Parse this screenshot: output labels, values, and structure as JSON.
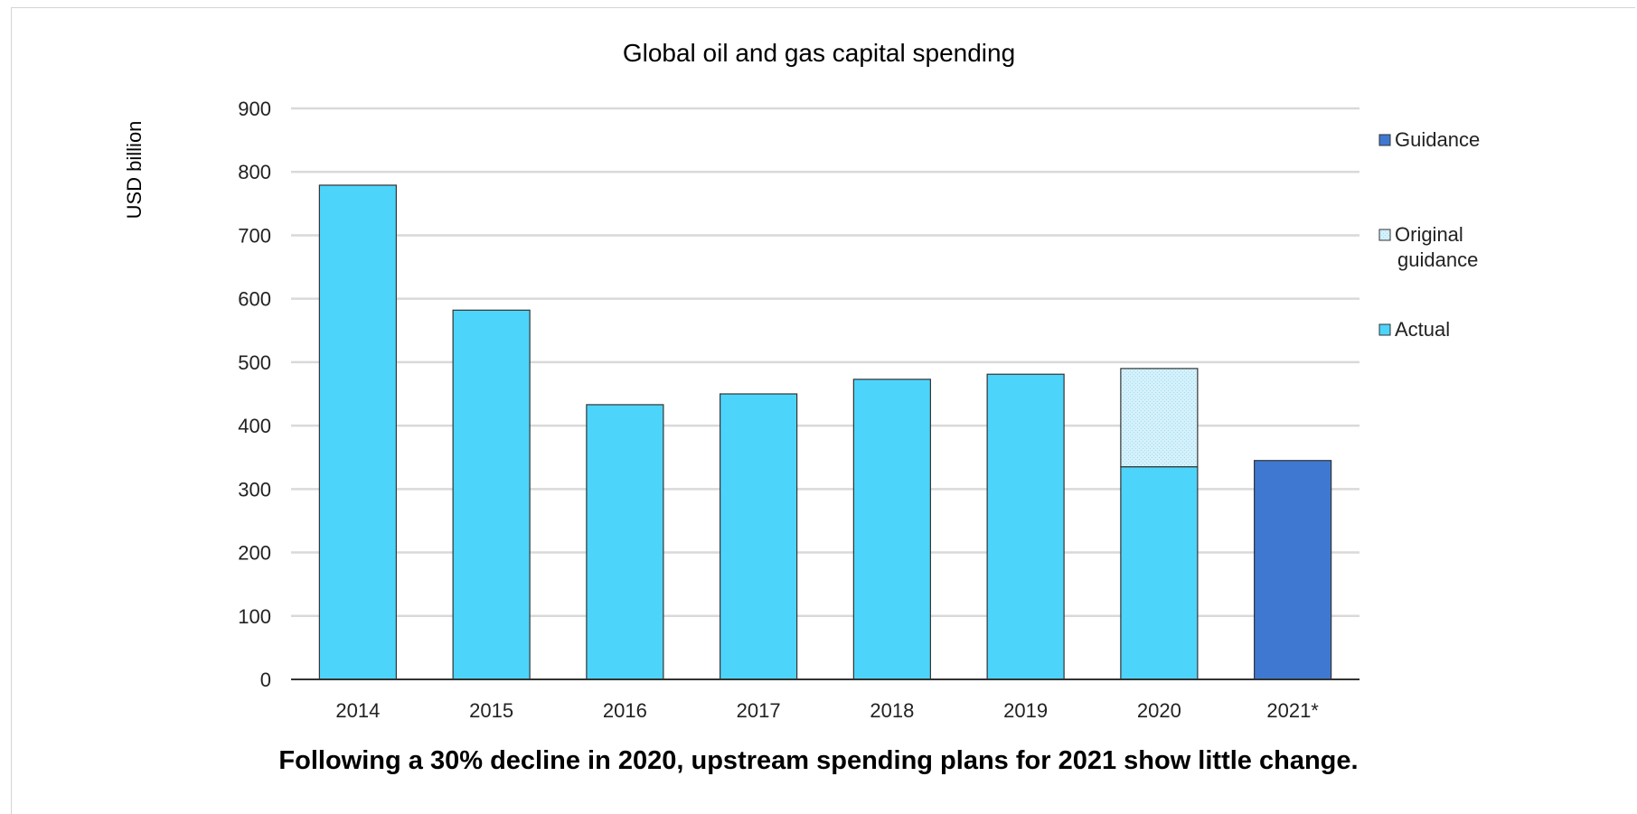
{
  "chart_data": {
    "type": "bar",
    "title": "Global oil and gas capital spending",
    "ylabel": "USD billion",
    "xlabel": "",
    "ylim": [
      0,
      900
    ],
    "yticks": [
      0,
      100,
      200,
      300,
      400,
      500,
      600,
      700,
      800,
      900
    ],
    "grid": true,
    "legend_position": "right",
    "categories": [
      "2014",
      "2015",
      "2016",
      "2017",
      "2018",
      "2019",
      "2020",
      "2021*"
    ],
    "series": [
      {
        "name": "Actual",
        "color": "#4dd4fb",
        "values": [
          779,
          582,
          433,
          450,
          473,
          481,
          335,
          null
        ]
      },
      {
        "name": "Original guidance",
        "color": "#d5f1fb",
        "values": [
          null,
          null,
          null,
          null,
          null,
          null,
          490,
          null
        ]
      },
      {
        "name": "Guidance",
        "color": "#3f78d1",
        "values": [
          null,
          null,
          null,
          null,
          null,
          null,
          null,
          345
        ]
      }
    ],
    "legend": [
      "Guidance",
      "Original guidance",
      "Actual"
    ]
  },
  "caption": "Following a 30% decline in 2020, upstream spending plans for 2021 show little change."
}
